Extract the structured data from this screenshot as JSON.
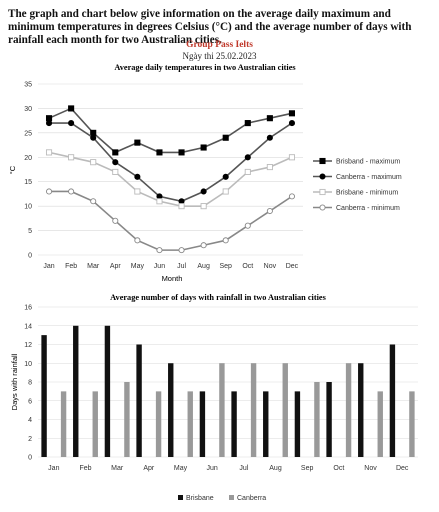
{
  "prompt": {
    "text": "The graph and chart below give information on the average daily maximum and minimum temperatures in degrees Celsius (°C) and the average number of days with rainfall each month for two Australian cities."
  },
  "watermark": {
    "line1": "Group Pass Ielts",
    "line2": "Ngày thi 25.02.2023",
    "line1_color": "#c0392b"
  },
  "chart_data": [
    {
      "type": "line",
      "title": "Average daily temperatures in two Australian cities",
      "xlabel": "Month",
      "ylabel": "°C",
      "categories": [
        "Jan",
        "Feb",
        "Mar",
        "Apr",
        "May",
        "Jun",
        "Jul",
        "Aug",
        "Sep",
        "Oct",
        "Nov",
        "Dec"
      ],
      "ylim": [
        0,
        35
      ],
      "yticks": [
        0,
        5,
        10,
        15,
        20,
        25,
        30,
        35
      ],
      "grid": true,
      "legend": "right",
      "series": [
        {
          "name": "Brisband - maximum",
          "marker": "square-filled",
          "color": "#555555",
          "values": [
            28,
            30,
            25,
            21,
            23,
            21,
            21,
            22,
            24,
            27,
            28,
            29
          ]
        },
        {
          "name": "Canberra - maximum",
          "marker": "circle-filled",
          "color": "#555555",
          "values": [
            27,
            27,
            24,
            19,
            16,
            12,
            11,
            13,
            16,
            20,
            24,
            27
          ]
        },
        {
          "name": "Brisbane - minimum",
          "marker": "square-open",
          "color": "#bbbbbb",
          "values": [
            21,
            20,
            19,
            17,
            13,
            11,
            10,
            10,
            13,
            17,
            18,
            20
          ]
        },
        {
          "name": "Canberra - minimum",
          "marker": "circle-open",
          "color": "#888888",
          "values": [
            13,
            13,
            11,
            7,
            3,
            1,
            1,
            2,
            3,
            6,
            9,
            12
          ]
        }
      ]
    },
    {
      "type": "bar",
      "title": "Average number of days with rainfall in two Australian cities",
      "xlabel": "",
      "ylabel": "Days with rainfall",
      "categories": [
        "Jan",
        "Feb",
        "Mar",
        "Apr",
        "May",
        "Jun",
        "Jul",
        "Aug",
        "Sep",
        "Oct",
        "Nov",
        "Dec"
      ],
      "ylim": [
        0,
        16
      ],
      "yticks": [
        0,
        2,
        4,
        6,
        8,
        10,
        12,
        14,
        16
      ],
      "grid": true,
      "legend": "bottom",
      "series": [
        {
          "name": "Brisbane",
          "color": "#111111",
          "values": [
            13,
            14,
            14,
            12,
            10,
            7,
            7,
            7,
            7,
            8,
            10,
            12
          ]
        },
        {
          "name": "Canberra",
          "color": "#999999",
          "values": [
            7,
            7,
            8,
            7,
            7,
            10,
            10,
            10,
            8,
            10,
            7,
            7
          ]
        }
      ]
    }
  ]
}
